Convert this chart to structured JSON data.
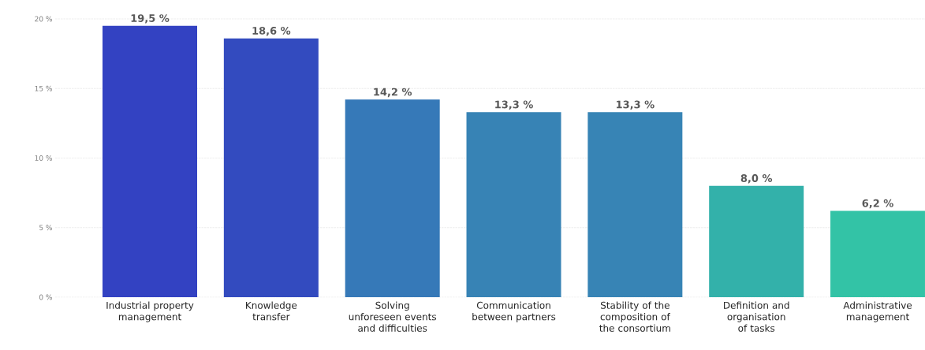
{
  "chart_data": {
    "type": "bar",
    "categories": [
      "Industrial property management",
      "Knowledge transfer",
      "Solving unforeseen events and difficulties",
      "Communication between partners",
      "Stability of the composition of the consortium",
      "Definition and organisation of tasks",
      "Administrative management"
    ],
    "values": [
      19.5,
      18.6,
      14.2,
      13.3,
      13.3,
      8.0,
      6.2
    ],
    "value_labels": [
      "19,5 %",
      "18,6 %",
      "14,2 %",
      "13,3 %",
      "13,3 %",
      "8,0 %",
      "6,2 %"
    ],
    "colors": [
      "#3342c2",
      "#334bbf",
      "#3679b8",
      "#3783b5",
      "#3784b5",
      "#33b1aa",
      "#33c3a6"
    ],
    "ylim": [
      0,
      20
    ],
    "yticks": [
      {
        "value": 0,
        "label": "0 %"
      },
      {
        "value": 5,
        "label": "5 %"
      },
      {
        "value": 10,
        "label": "10 %"
      },
      {
        "value": 15,
        "label": "15 %"
      },
      {
        "value": 20,
        "label": "20 %"
      }
    ],
    "grid": "y"
  }
}
